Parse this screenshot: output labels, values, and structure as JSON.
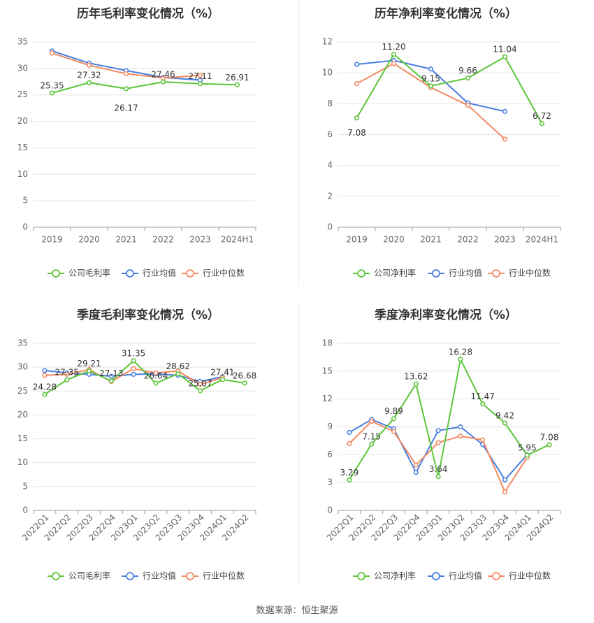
{
  "source_text": "数据来源：恒生聚源",
  "legend_labels": {
    "company_gross": "公司毛利率",
    "company_net": "公司净利率",
    "industry_avg": "行业均值",
    "industry_median": "行业中位数"
  },
  "colors": {
    "company": "#5cc63a",
    "industry_avg": "#4a7fe0",
    "industry_median": "#f28a62",
    "grid": "#e4e4e4",
    "axis": "#999999",
    "text": "#666666",
    "title": "#333333"
  },
  "chart_data": [
    {
      "id": "annual-gross",
      "type": "line",
      "title": "历年毛利率变化情况（%）",
      "categories": [
        "2019",
        "2020",
        "2021",
        "2022",
        "2023",
        "2024H1"
      ],
      "ylim": [
        0,
        35
      ],
      "yticks": [
        0,
        5,
        10,
        15,
        20,
        25,
        30,
        35
      ],
      "legend_position": "bottom",
      "series": [
        {
          "name": "公司毛利率",
          "color_key": "company",
          "values": [
            25.35,
            27.32,
            26.17,
            27.46,
            27.11,
            26.91
          ],
          "labels": [
            "25.35",
            "27.32",
            "26.17",
            "27.46",
            "27.11",
            "26.91"
          ]
        },
        {
          "name": "行业均值",
          "color_key": "industry_avg",
          "values": [
            33.3,
            31.0,
            29.6,
            28.3,
            27.8,
            null
          ],
          "labels": []
        },
        {
          "name": "行业中位数",
          "color_key": "industry_median",
          "values": [
            32.9,
            30.6,
            29.0,
            28.2,
            28.7,
            null
          ],
          "labels": []
        }
      ]
    },
    {
      "id": "annual-net",
      "type": "line",
      "title": "历年净利率变化情况（%）",
      "categories": [
        "2019",
        "2020",
        "2021",
        "2022",
        "2023",
        "2024H1"
      ],
      "ylim": [
        0,
        12
      ],
      "yticks": [
        0,
        2,
        4,
        6,
        8,
        10,
        12
      ],
      "legend_position": "bottom",
      "series": [
        {
          "name": "公司净利率",
          "color_key": "company",
          "values": [
            7.08,
            11.2,
            9.15,
            9.66,
            11.04,
            6.72
          ],
          "labels": [
            "7.08",
            "11.20",
            "9.15",
            "9.66",
            "11.04",
            "6.72"
          ]
        },
        {
          "name": "行业均值",
          "color_key": "industry_avg",
          "values": [
            10.55,
            10.8,
            10.25,
            8.05,
            7.5,
            null
          ],
          "labels": []
        },
        {
          "name": "行业中位数",
          "color_key": "industry_median",
          "values": [
            9.3,
            10.6,
            9.05,
            7.9,
            5.7,
            null
          ],
          "labels": []
        }
      ]
    },
    {
      "id": "quarterly-gross",
      "type": "line",
      "title": "季度毛利率变化情况（%）",
      "categories": [
        "2022Q1",
        "2022Q2",
        "2022Q3",
        "2022Q4",
        "2023Q1",
        "2023Q2",
        "2023Q3",
        "2023Q4",
        "2024Q1",
        "2024Q2"
      ],
      "ylim": [
        0,
        35
      ],
      "yticks": [
        0,
        5,
        10,
        15,
        20,
        25,
        30,
        35
      ],
      "legend_position": "bottom",
      "series": [
        {
          "name": "公司毛利率",
          "color_key": "company",
          "values": [
            24.28,
            27.35,
            29.21,
            27.13,
            31.35,
            26.64,
            28.62,
            25.07,
            27.41,
            26.68
          ],
          "labels": [
            "24.28",
            "27.35",
            "29.21",
            "27.13",
            "31.35",
            "26.64",
            "28.62",
            "25.07",
            "27.41",
            "26.68"
          ]
        },
        {
          "name": "行业均值",
          "color_key": "industry_avg",
          "values": [
            29.3,
            28.8,
            28.5,
            28.1,
            28.5,
            28.6,
            28.3,
            27.0,
            28.0,
            null
          ],
          "labels": []
        },
        {
          "name": "行业中位数",
          "color_key": "industry_median",
          "values": [
            28.3,
            28.5,
            29.5,
            27.0,
            29.7,
            28.8,
            29.2,
            26.4,
            27.8,
            null
          ],
          "labels": []
        }
      ]
    },
    {
      "id": "quarterly-net",
      "type": "line",
      "title": "季度净利率变化情况（%）",
      "categories": [
        "2022Q1",
        "2022Q2",
        "2022Q3",
        "2022Q4",
        "2023Q1",
        "2023Q2",
        "2023Q3",
        "2023Q4",
        "2024Q1",
        "2024Q2"
      ],
      "ylim": [
        0,
        18
      ],
      "yticks": [
        0,
        3,
        6,
        9,
        12,
        15,
        18
      ],
      "legend_position": "bottom",
      "series": [
        {
          "name": "公司净利率",
          "color_key": "company",
          "values": [
            3.29,
            7.15,
            9.89,
            13.62,
            3.64,
            16.28,
            11.47,
            9.42,
            5.95,
            7.08
          ],
          "labels": [
            "3.29",
            "7.15",
            "9.89",
            "13.62",
            "3.64",
            "16.28",
            "11.47",
            "9.42",
            "5.95",
            "7.08"
          ]
        },
        {
          "name": "行业均值",
          "color_key": "industry_avg",
          "values": [
            8.4,
            9.8,
            8.8,
            4.1,
            8.6,
            9.0,
            7.1,
            3.3,
            6.0,
            null
          ],
          "labels": []
        },
        {
          "name": "行业中位数",
          "color_key": "industry_median",
          "values": [
            7.2,
            9.6,
            8.5,
            4.9,
            7.3,
            8.0,
            7.6,
            2.0,
            5.7,
            null
          ],
          "labels": []
        }
      ]
    }
  ]
}
